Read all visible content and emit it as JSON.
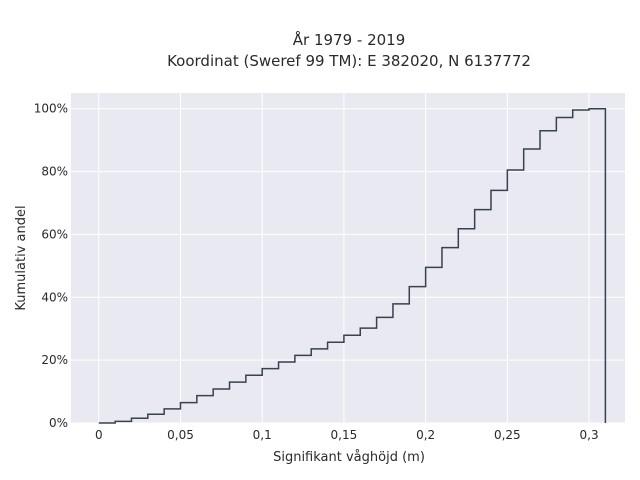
{
  "chart_data": {
    "type": "line",
    "subtype": "cumulative-step",
    "title_line1": "År 1979 - 2019",
    "title_line2": "Koordinat (Sweref 99 TM): E 382020, N 6137772",
    "xlabel": "Signifikant våghöjd (m)",
    "ylabel": "Kumulativ andel",
    "xlim": [
      -0.017,
      0.322
    ],
    "ylim": [
      0,
      1.05
    ],
    "x_ticks": [
      0,
      0.05,
      0.1,
      0.15,
      0.2,
      0.25,
      0.3
    ],
    "x_tick_labels": [
      "0",
      "0,05",
      "0,1",
      "0,15",
      "0,2",
      "0,25",
      "0,3"
    ],
    "y_ticks": [
      0,
      0.2,
      0.4,
      0.6,
      0.8,
      1.0
    ],
    "y_tick_labels": [
      "0%",
      "20%",
      "40%",
      "60%",
      "80%",
      "100%"
    ],
    "grid": true,
    "line_color": "#3a4050",
    "background_color": "#e9e9f1",
    "x": [
      0,
      0.01,
      0.02,
      0.03,
      0.04,
      0.05,
      0.06,
      0.07,
      0.08,
      0.09,
      0.1,
      0.11,
      0.12,
      0.13,
      0.14,
      0.15,
      0.16,
      0.17,
      0.18,
      0.19,
      0.2,
      0.21,
      0.22,
      0.23,
      0.24,
      0.25,
      0.26,
      0.27,
      0.28,
      0.29,
      0.3,
      0.31
    ],
    "y": [
      0,
      0.005,
      0.015,
      0.028,
      0.045,
      0.065,
      0.087,
      0.108,
      0.13,
      0.152,
      0.173,
      0.194,
      0.215,
      0.236,
      0.257,
      0.279,
      0.302,
      0.336,
      0.379,
      0.434,
      0.495,
      0.558,
      0.618,
      0.679,
      0.74,
      0.805,
      0.872,
      0.93,
      0.972,
      0.996,
      1.0,
      0
    ]
  }
}
